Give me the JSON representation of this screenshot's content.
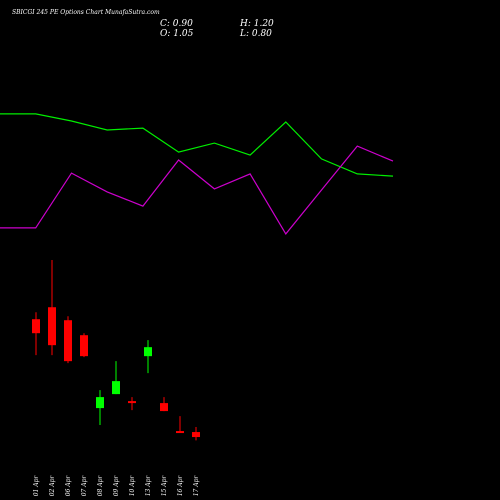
{
  "chart_data": [
    {
      "type": "candlestick",
      "title": "SBICGI 245 PE Options Chart MunafaSutra.com",
      "ohlc_labels": [
        "C: 0.90",
        "H: 1.20",
        "O: 1.05",
        "L: 0.80"
      ],
      "categories": [
        "01 Apr",
        "02 Apr",
        "06 Apr",
        "07 Apr",
        "08 Apr",
        "09 Apr",
        "10 Apr",
        "13 Apr",
        "15 Apr",
        "16 Apr",
        "17 Apr"
      ],
      "open": [
        4.44,
        4.8,
        4.41,
        3.96,
        1.77,
        2.19,
        1.98,
        3.33,
        1.92,
        1.08,
        1.05
      ],
      "high": [
        4.65,
        6.22,
        4.53,
        4.02,
        2.31,
        3.18,
        2.1,
        3.81,
        2.1,
        1.53,
        1.2
      ],
      "low": [
        3.36,
        3.36,
        3.12,
        3.3,
        1.26,
        2.19,
        1.71,
        2.82,
        1.68,
        1.02,
        0.8
      ],
      "close": [
        4.02,
        3.66,
        3.18,
        3.33,
        2.1,
        2.58,
        1.92,
        3.6,
        1.68,
        1.02,
        0.9
      ],
      "up_color": "#00ff00",
      "down_color": "#ff0000",
      "ylim": [
        0,
        7
      ]
    },
    {
      "type": "line",
      "series": [
        {
          "color": "#00ee00",
          "values": [
            90.7,
            90.7,
            86,
            80,
            81.3,
            65.3,
            71.3,
            63.3,
            85.3,
            60.7,
            50.7,
            49.3
          ]
        },
        {
          "color": "#cc00cc",
          "values": [
            14.7,
            14.7,
            51.3,
            38.7,
            29.3,
            60,
            40.7,
            50.7,
            10.7,
            40,
            69.3,
            59.3
          ]
        }
      ],
      "ylim": [
        0,
        100
      ]
    }
  ]
}
